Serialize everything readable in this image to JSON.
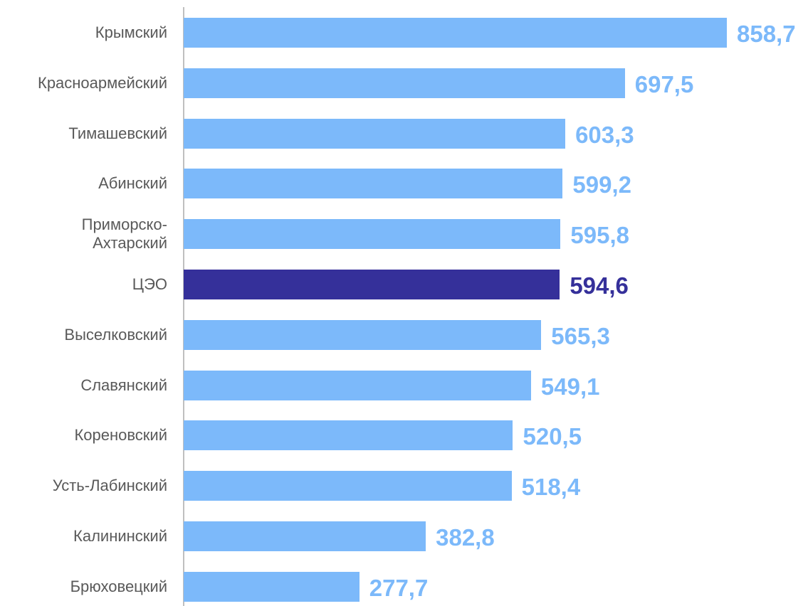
{
  "chart_data": {
    "type": "barh",
    "categories": [
      "Крымский",
      "Красноармейский",
      "Тимашевский",
      "Абинский",
      "Приморско-\nАхтарский",
      "ЦЭО",
      "Выселковский",
      "Славянский",
      "Кореновский",
      "Усть-Лабинский",
      "Калининский",
      "Брюховецкий"
    ],
    "values": [
      858.7,
      697.5,
      603.3,
      599.2,
      595.8,
      594.6,
      565.3,
      549.1,
      520.5,
      518.4,
      382.8,
      277.7
    ],
    "value_labels": [
      "858,7",
      "697,5",
      "603,3",
      "599,2",
      "595,8",
      "594,6",
      "565,3",
      "549,1",
      "520,5",
      "518,4",
      "382,8",
      "277,7"
    ],
    "colors": [
      "#7cb9fa",
      "#7cb9fa",
      "#7cb9fa",
      "#7cb9fa",
      "#7cb9fa",
      "#35309a",
      "#7cb9fa",
      "#7cb9fa",
      "#7cb9fa",
      "#7cb9fa",
      "#7cb9fa",
      "#7cb9fa"
    ]
  }
}
